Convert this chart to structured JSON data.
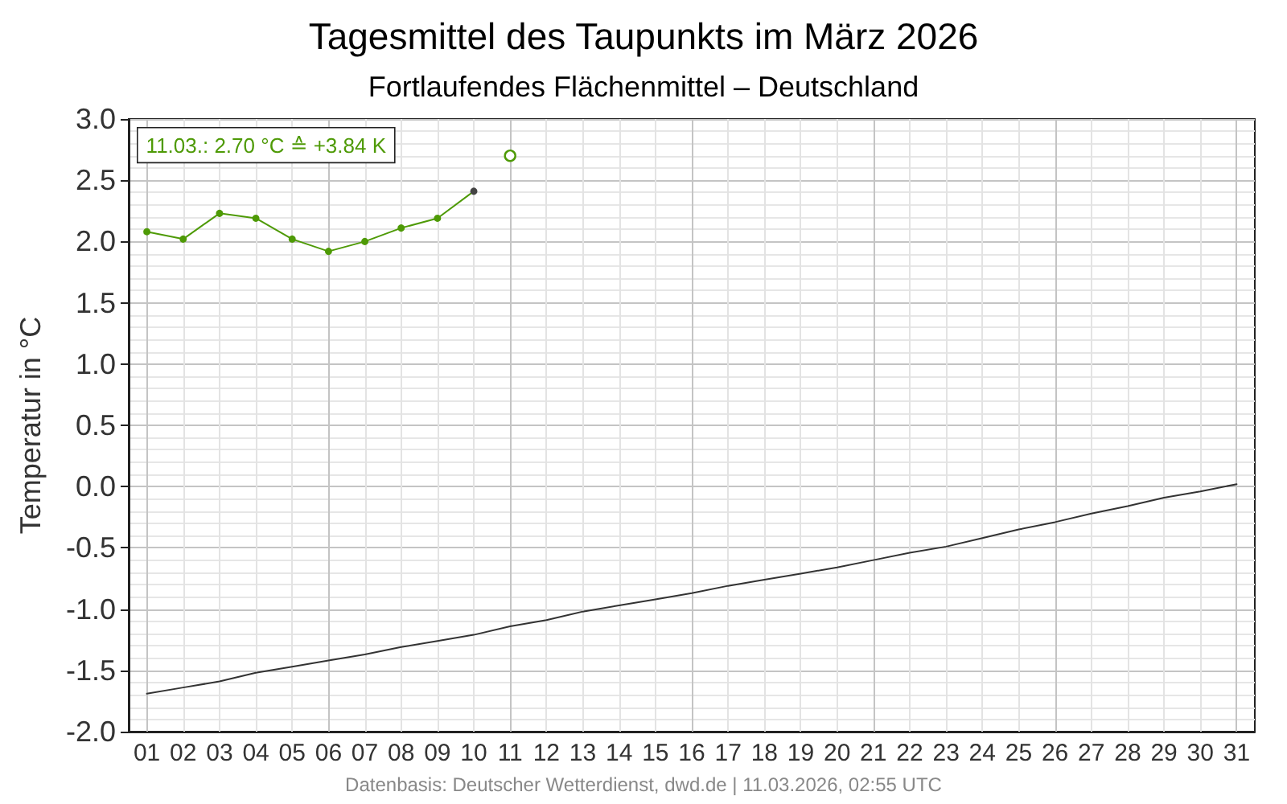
{
  "chart_data": {
    "type": "line",
    "title": "Tagesmittel des Taupunkts im März 2026",
    "subtitle": "Fortlaufendes Flächenmittel – Deutschland",
    "ylabel": "Temperatur in °C",
    "annotations": [
      "11.03.: 2.70 °C ≙ +3.84 K",
      "Datenbasis: Deutscher Wetterdienst, dwd.de | 11.03.2026, 02:55 UTC"
    ],
    "categories": [
      "01",
      "02",
      "03",
      "04",
      "05",
      "06",
      "07",
      "08",
      "09",
      "10",
      "11",
      "12",
      "13",
      "14",
      "15",
      "16",
      "17",
      "18",
      "19",
      "20",
      "21",
      "22",
      "23",
      "24",
      "25",
      "26",
      "27",
      "28",
      "29",
      "30",
      "31"
    ],
    "series": [
      {
        "color": "#333333",
        "marker": "none",
        "values": [
          -1.69,
          -1.64,
          -1.59,
          -1.52,
          -1.47,
          -1.42,
          -1.37,
          -1.31,
          -1.26,
          -1.21,
          -1.14,
          -1.09,
          -1.02,
          -0.97,
          -0.92,
          -0.87,
          -0.81,
          -0.76,
          -0.71,
          -0.66,
          -0.6,
          -0.54,
          -0.49,
          -0.42,
          -0.35,
          -0.29,
          -0.22,
          -0.16,
          -0.09,
          -0.04,
          0.02
        ]
      },
      {
        "color": "#4e9a06",
        "marker": "circle",
        "values": [
          2.08,
          2.02,
          2.23,
          2.19,
          2.02,
          1.92,
          2.0,
          2.11,
          2.19,
          2.41,
          null,
          null,
          null,
          null,
          null,
          null,
          null,
          null,
          null,
          null,
          null,
          null,
          null,
          null,
          null,
          null,
          null,
          null,
          null,
          null,
          null
        ],
        "colors": [
          "#4e9a06",
          "#4e9a06",
          "#4e9a06",
          "#4e9a06",
          "#4e9a06",
          "#4e9a06",
          "#4e9a06",
          "#4e9a06",
          "#4e9a06",
          "#444444",
          null,
          null,
          null,
          null,
          null,
          null,
          null,
          null,
          null,
          null,
          null,
          null,
          null,
          null,
          null,
          null,
          null,
          null,
          null,
          null,
          null
        ]
      },
      {
        "type": "scatter",
        "color": "#4e9a06",
        "marker": "circle",
        "x": [
          "11"
        ],
        "values": [
          2.7
        ]
      }
    ],
    "ylim": [
      -2,
      3
    ],
    "yticks": [
      {
        "value": -2,
        "label": "-2.0"
      },
      {
        "value": -1.5,
        "label": "-1.5"
      },
      {
        "value": -1,
        "label": "-1.0"
      },
      {
        "value": -0.5,
        "label": "-0.5"
      },
      {
        "value": 0,
        "label": "0.0"
      },
      {
        "value": 0.5,
        "label": "0.5"
      },
      {
        "value": 1,
        "label": "1.0"
      },
      {
        "value": 1.5,
        "label": "1.5"
      },
      {
        "value": 2,
        "label": "2.0"
      },
      {
        "value": 2.5,
        "label": "2.5"
      },
      {
        "value": 3,
        "label": "3.0"
      }
    ],
    "grid": true
  }
}
